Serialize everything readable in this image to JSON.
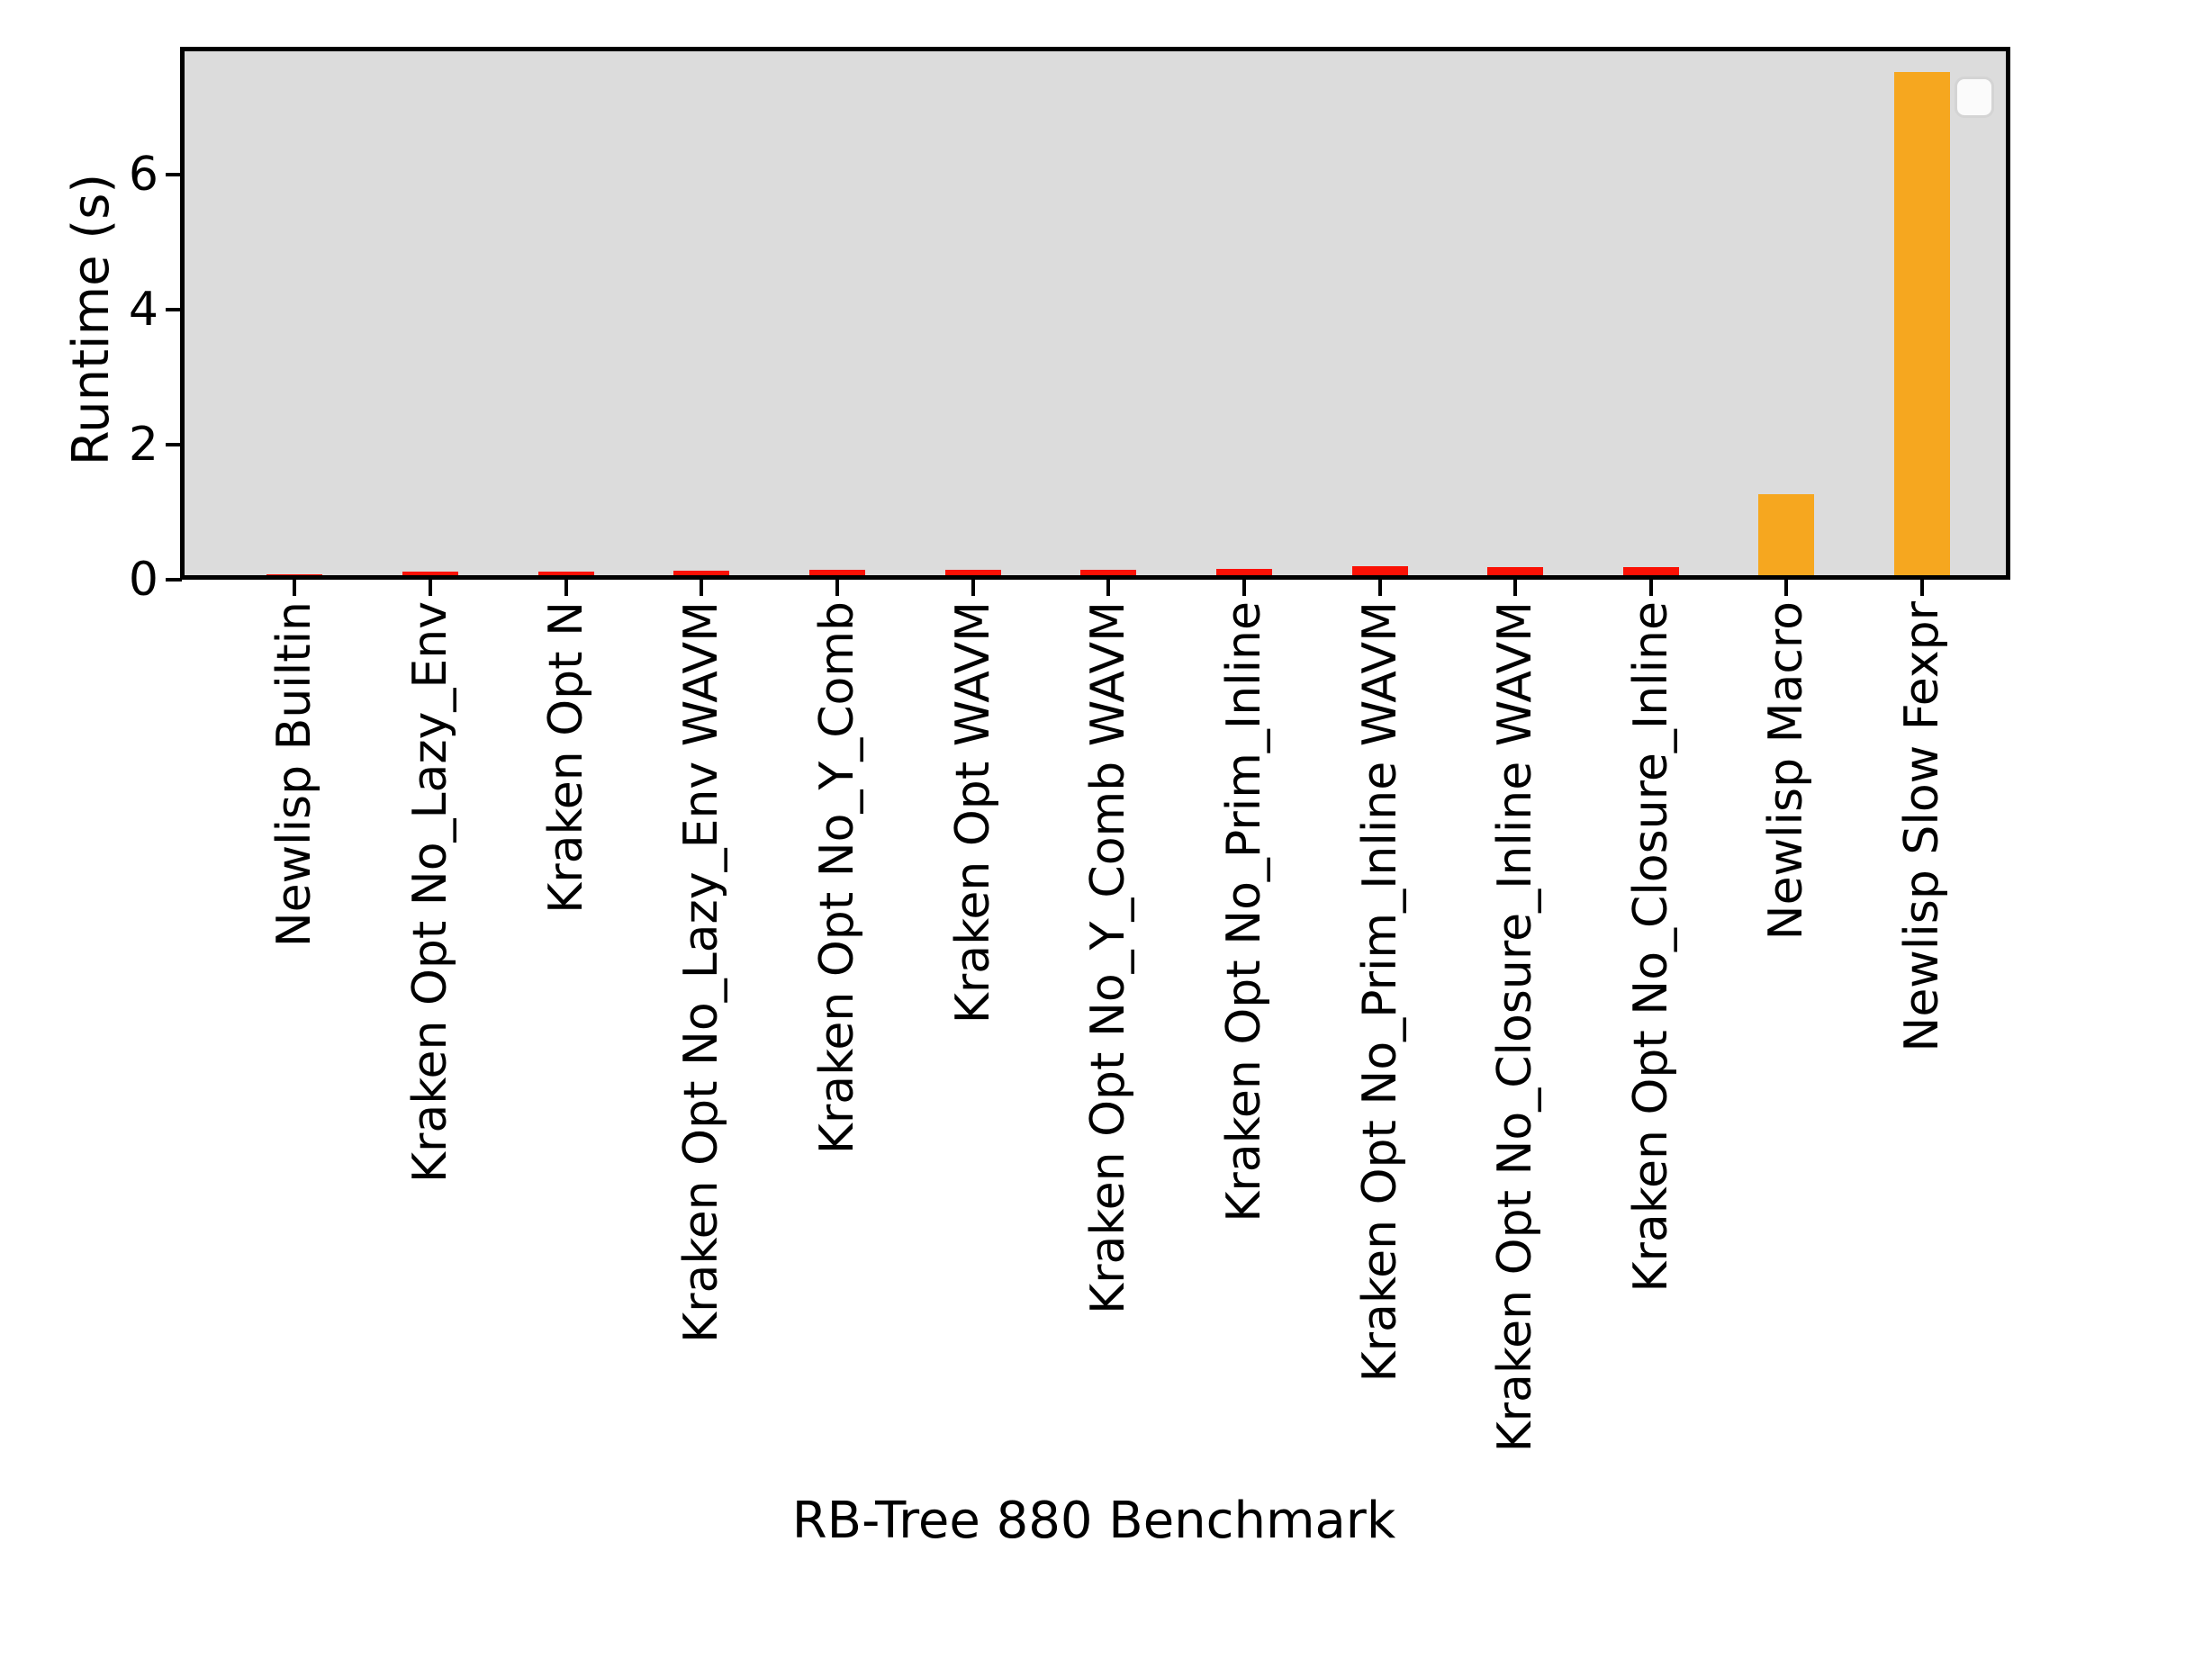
{
  "figure": {
    "background": "#ffffff",
    "plot_background": "#dcdcdc",
    "spine_color": "#000000"
  },
  "chart_data": {
    "type": "bar",
    "title": "",
    "xlabel": "RB-Tree 880 Benchmark",
    "ylabel": "Runtime (s)",
    "categories": [
      "Newlisp Builtin",
      "Kraken Opt No_Lazy_Env",
      "Kraken Opt N",
      "Kraken Opt No_Lazy_Env WAVM",
      "Kraken Opt No_Y_Comb",
      "Kraken Opt WAVM",
      "Kraken Opt No_Y_Comb WAVM",
      "Kraken Opt No_Prim_Inline",
      "Kraken Opt No_Prim_Inline WAVM",
      "Kraken Opt No_Closure_Inline WAVM",
      "Kraken Opt No_Closure_Inline",
      "Newlisp Macro",
      "Newlisp Slow Fexpr"
    ],
    "values": [
      0.01,
      0.06,
      0.05,
      0.07,
      0.08,
      0.08,
      0.08,
      0.1,
      0.13,
      0.12,
      0.12,
      1.2,
      7.45
    ],
    "bar_colors": [
      "#fa1105",
      "#fa1105",
      "#fa1105",
      "#fa1105",
      "#fa1105",
      "#fa1105",
      "#fa1105",
      "#fa1105",
      "#fa1105",
      "#fa1105",
      "#fa1105",
      "#f6a71f",
      "#f6a71f"
    ],
    "yticks": [
      0,
      2,
      4,
      6
    ],
    "ylim": [
      0,
      7.85
    ],
    "grid": false,
    "legend": {
      "visible": true,
      "entries": [],
      "position": "upper right"
    }
  }
}
